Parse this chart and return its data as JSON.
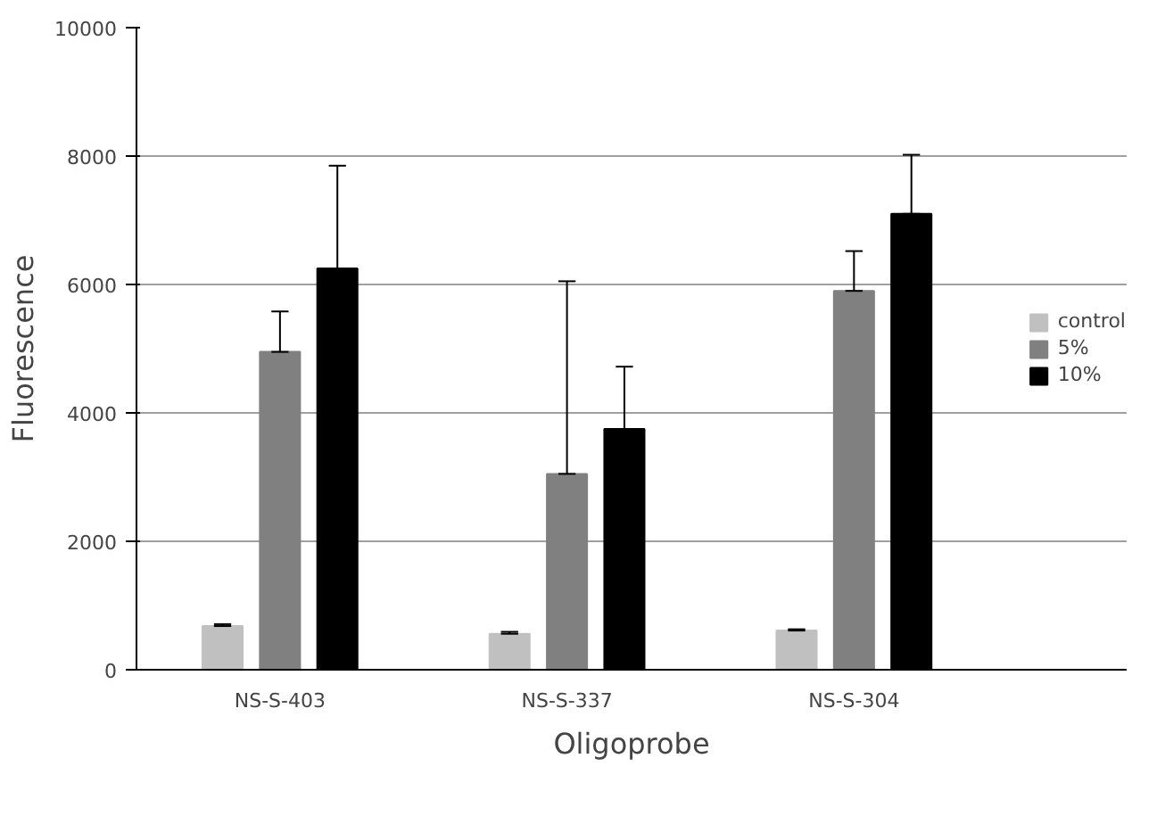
{
  "chart_data": {
    "type": "bar",
    "xlabel": "Oligoprobe",
    "ylabel": "Fluorescence",
    "categories": [
      "NS-S-403",
      "NS-S-337",
      "NS-S-304"
    ],
    "series": [
      {
        "name": "control",
        "color": "#c0c0c0",
        "values": [
          680,
          560,
          610
        ],
        "errors": [
          [
            680,
            710
          ],
          [
            560,
            590
          ],
          [
            610,
            630
          ]
        ]
      },
      {
        "name": "5%",
        "color": "#808080",
        "values": [
          4950,
          3050,
          5900
        ],
        "errors": [
          [
            4950,
            5580
          ],
          [
            3050,
            6050
          ],
          [
            5900,
            6520
          ]
        ]
      },
      {
        "name": "10%",
        "color": "#000000",
        "values": [
          6250,
          3750,
          7100
        ],
        "errors": [
          [
            6250,
            7850
          ],
          [
            3750,
            4720
          ],
          [
            7100,
            8020
          ]
        ]
      }
    ],
    "ylim": [
      0,
      10000
    ],
    "yticks": [
      0,
      2000,
      4000,
      6000,
      8000,
      10000
    ],
    "grid": "y",
    "legend": "right"
  }
}
